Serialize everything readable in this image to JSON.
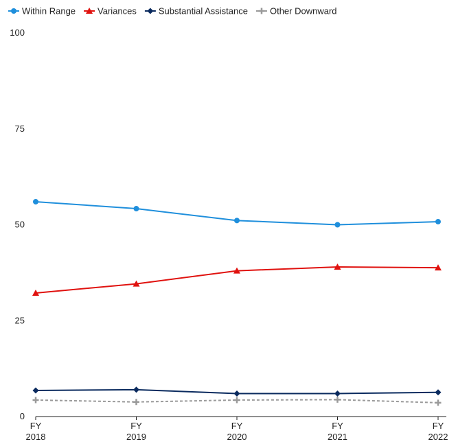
{
  "chart_data": {
    "type": "line",
    "categories": [
      "FY 2018",
      "FY 2019",
      "FY 2020",
      "FY 2021",
      "FY 2022"
    ],
    "category_lines": [
      [
        "FY",
        "2018"
      ],
      [
        "FY",
        "2019"
      ],
      [
        "FY",
        "2020"
      ],
      [
        "FY",
        "2021"
      ],
      [
        "FY",
        "2022"
      ]
    ],
    "ylim": [
      0,
      100
    ],
    "yticks": [
      0,
      25,
      50,
      75,
      100
    ],
    "grid": false,
    "legend_position": "top-left",
    "series": [
      {
        "name": "Within Range",
        "values": [
          56.0,
          54.2,
          51.1,
          50.0,
          50.8
        ],
        "color": "#1f8fdc",
        "marker": "circle",
        "dash": false
      },
      {
        "name": "Variances",
        "values": [
          32.2,
          34.6,
          38.0,
          39.0,
          38.8
        ],
        "color": "#e0120f",
        "marker": "triangle",
        "dash": false
      },
      {
        "name": "Substantial Assistance",
        "values": [
          6.8,
          7.0,
          6.0,
          6.0,
          6.3
        ],
        "color": "#0a2a5e",
        "marker": "diamond",
        "dash": false
      },
      {
        "name": "Other Downward",
        "values": [
          4.3,
          3.8,
          4.3,
          4.4,
          3.6
        ],
        "color": "#9a9a9a",
        "marker": "plus",
        "dash": true
      }
    ]
  }
}
